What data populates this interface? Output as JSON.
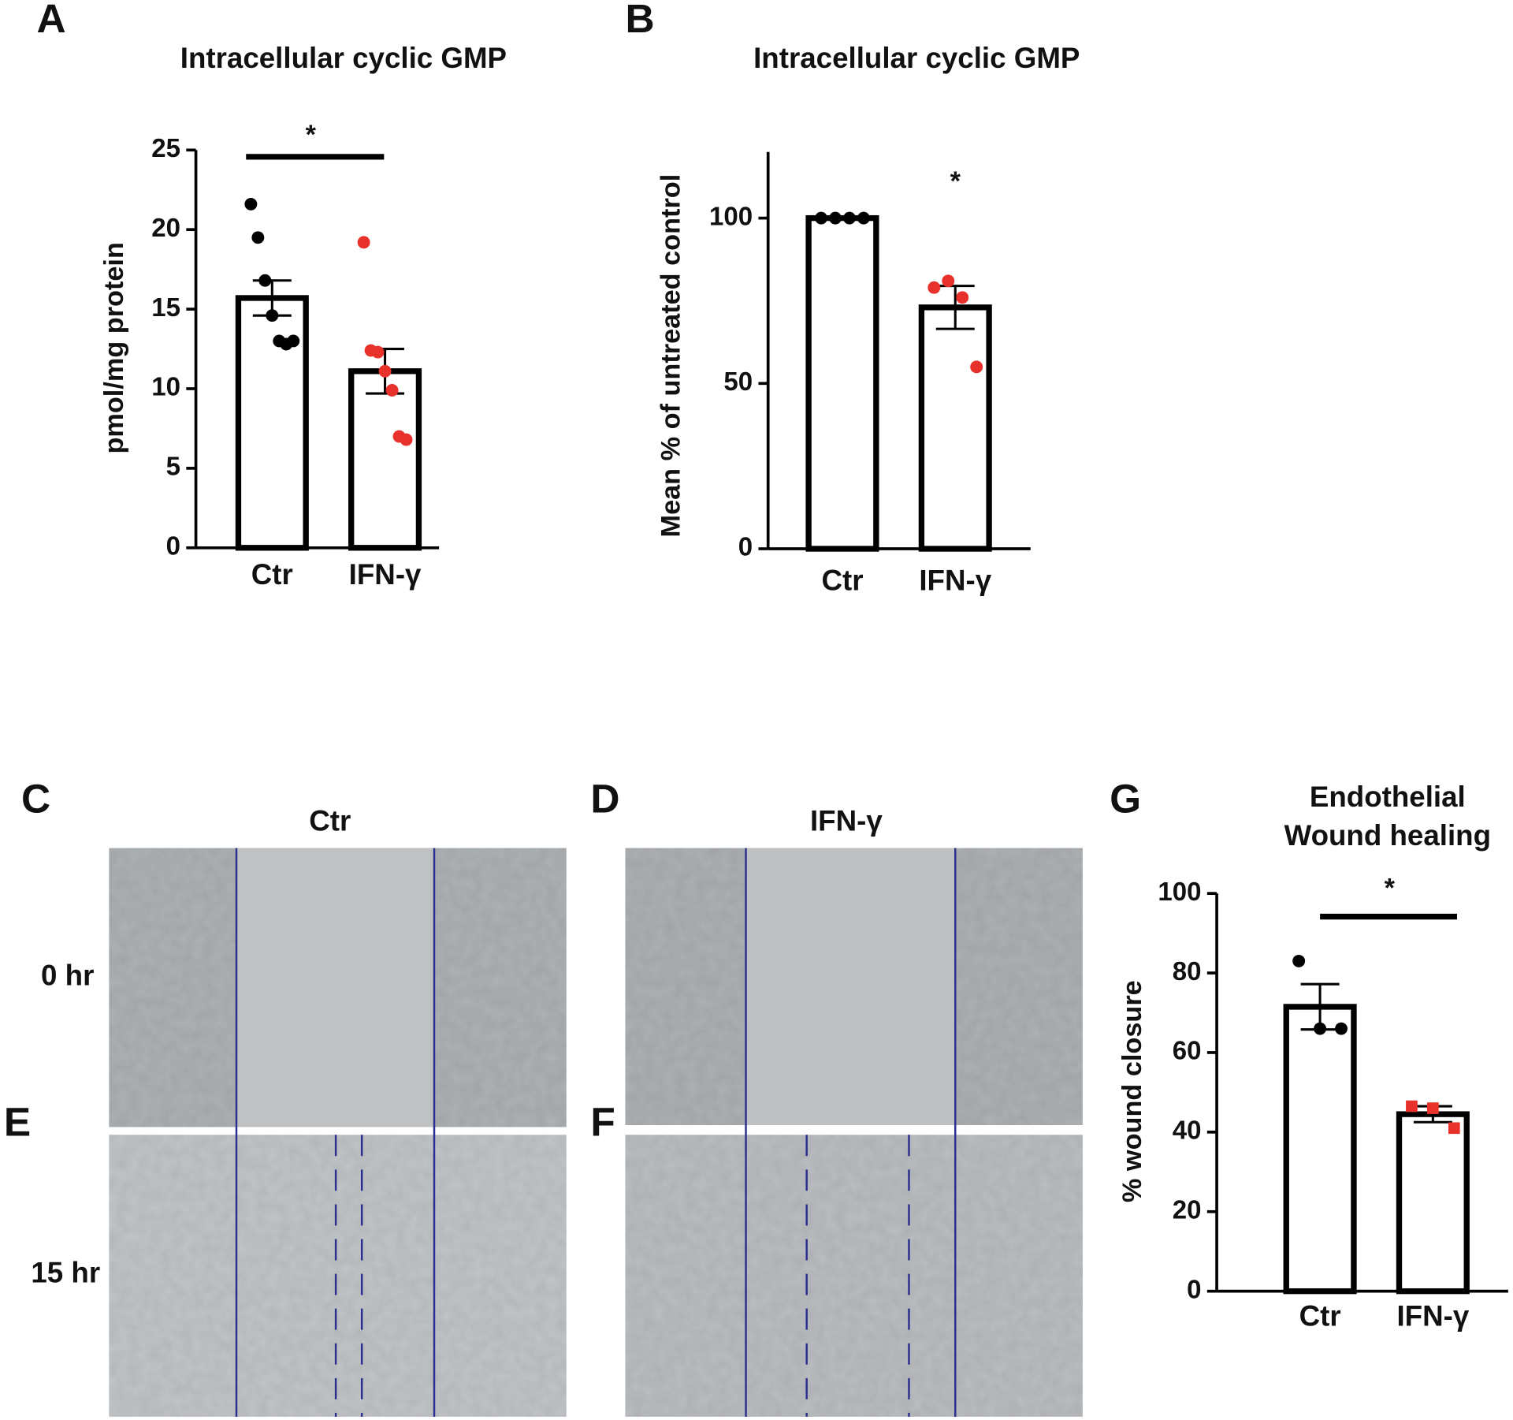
{
  "chart_data": [
    {
      "type": "bar",
      "panel": "A",
      "title": "Intracellular cyclic GMP",
      "ylabel": "pmol/mg protein",
      "categories": [
        "Ctr",
        "IFN-γ"
      ],
      "values": [
        15.7,
        11.1
      ],
      "errors": [
        1.1,
        1.4
      ],
      "points": [
        [
          21.6,
          19.5,
          16.8,
          14.6,
          13.0,
          12.8,
          13.0
        ],
        [
          19.2,
          12.4,
          12.3,
          11.1,
          9.9,
          7.0,
          6.8
        ]
      ],
      "point_colors": [
        "#000000",
        "#e8312a"
      ],
      "markers": [
        "circle",
        "circle"
      ],
      "ylim": [
        0,
        25
      ],
      "yticks": [
        0,
        5,
        10,
        15,
        20,
        25
      ],
      "significance": "*",
      "significance_bar": true
    },
    {
      "type": "bar",
      "panel": "B",
      "title": "Intracellular cyclic GMP",
      "ylabel": "Mean % of untreated control",
      "categories": [
        "Ctr",
        "IFN-γ"
      ],
      "values": [
        100,
        73
      ],
      "errors": [
        0,
        6.5
      ],
      "points": [
        [
          100,
          100,
          100,
          100
        ],
        [
          79,
          81,
          76,
          55
        ]
      ],
      "point_colors": [
        "#000000",
        "#e8312a"
      ],
      "markers": [
        "circle",
        "circle"
      ],
      "ylim": [
        0,
        120
      ],
      "yticks": [
        0,
        50,
        100
      ],
      "significance": "*",
      "significance_bar": false
    },
    {
      "type": "bar",
      "panel": "G",
      "title_lines": [
        "Endothelial",
        "Wound healing"
      ],
      "ylabel": "% wound closure",
      "categories": [
        "Ctr",
        "IFN-γ"
      ],
      "values": [
        71.5,
        44.5
      ],
      "errors": [
        5.7,
        2
      ],
      "points": [
        [
          83,
          66,
          66
        ],
        [
          46.5,
          46,
          41
        ]
      ],
      "point_colors": [
        "#000000",
        "#e8312a"
      ],
      "markers": [
        "circle",
        "square"
      ],
      "ylim": [
        0,
        100
      ],
      "yticks": [
        0,
        20,
        40,
        60,
        80,
        100
      ],
      "significance": "*",
      "significance_bar": true
    }
  ],
  "image_panel": {
    "letters": [
      "C",
      "D",
      "E",
      "F"
    ],
    "columns": [
      "Ctr",
      "IFN-γ"
    ],
    "rows": [
      "0 hr",
      "15 hr"
    ]
  }
}
